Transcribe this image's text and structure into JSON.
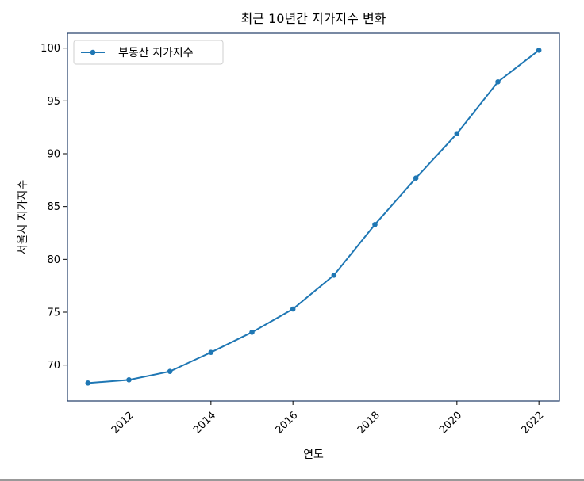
{
  "chart_data": {
    "type": "line",
    "title": "최근 10년간 지가지수 변화",
    "xlabel": "연도",
    "ylabel": "서울시 지가지수",
    "xlim": [
      2010.5,
      2022.5
    ],
    "ylim": [
      66.6,
      101.4
    ],
    "xticks": [
      2012,
      2014,
      2016,
      2018,
      2020,
      2022
    ],
    "yticks": [
      70,
      75,
      80,
      85,
      90,
      95,
      100
    ],
    "legend": "top-left",
    "grid": false,
    "series": [
      {
        "name": "부동산 지가지수",
        "color": "#1f77b4",
        "x": [
          2011,
          2012,
          2013,
          2014,
          2015,
          2016,
          2017,
          2018,
          2019,
          2020,
          2021,
          2022
        ],
        "y": [
          68.3,
          68.6,
          69.4,
          71.2,
          73.1,
          75.3,
          78.5,
          83.3,
          87.7,
          91.9,
          96.8,
          99.8
        ]
      }
    ]
  }
}
